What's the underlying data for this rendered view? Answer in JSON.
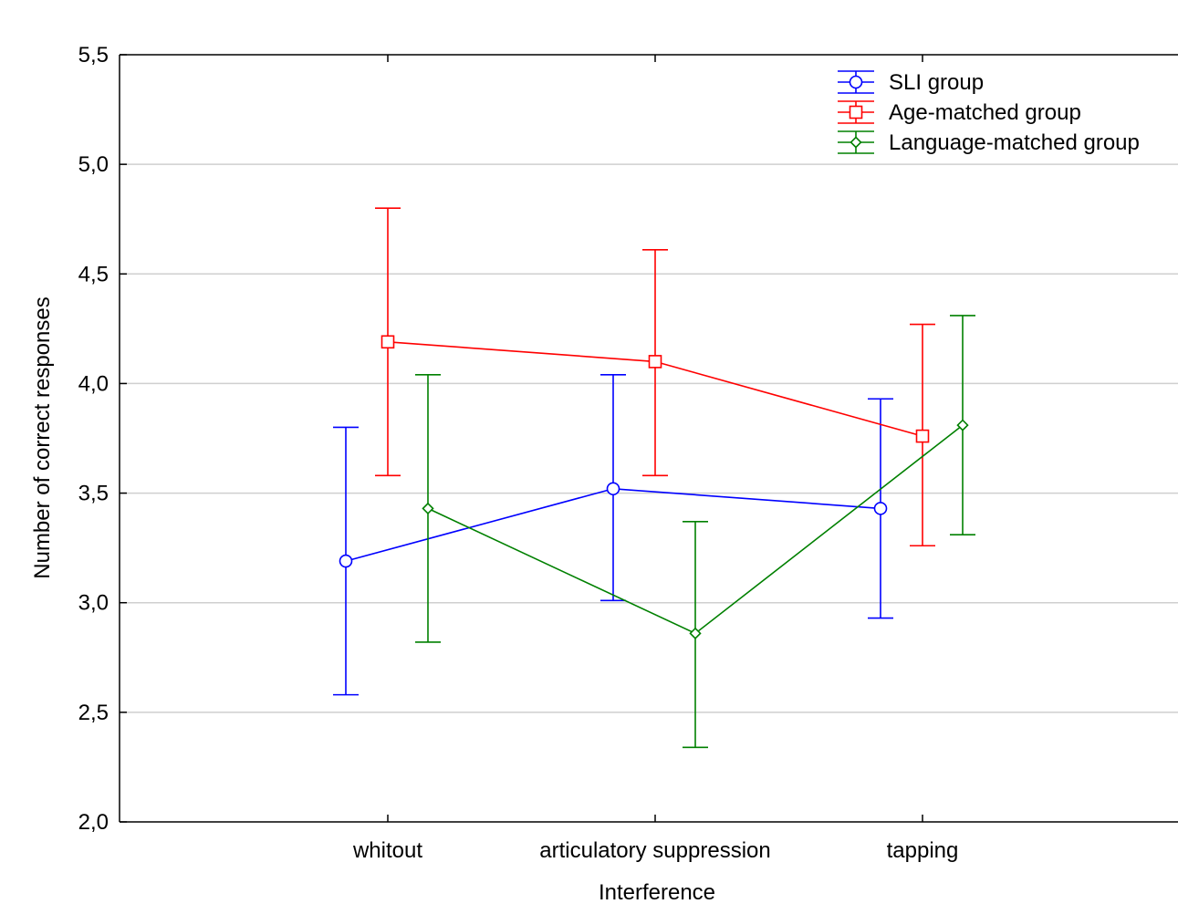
{
  "chart_data": {
    "type": "line",
    "xlabel": "Interference",
    "ylabel": "Number of correct responses",
    "categories": [
      "whitout",
      "articulatory suppression",
      "tapping"
    ],
    "ylim": [
      2.0,
      5.5
    ],
    "yticks": [
      "2,0",
      "2,5",
      "3,0",
      "3,5",
      "4,0",
      "4,5",
      "5,0",
      "5,5"
    ],
    "grid": "horizontal",
    "legend_position": "top-right",
    "series": [
      {
        "name": "SLI group",
        "color": "#0000ff",
        "marker": "circle",
        "values": [
          3.19,
          3.52,
          3.43
        ],
        "lower": [
          2.58,
          3.01,
          2.93
        ],
        "upper": [
          3.8,
          4.04,
          3.93
        ]
      },
      {
        "name": "Age-matched group",
        "color": "#ff0000",
        "marker": "square",
        "values": [
          4.19,
          4.1,
          3.76
        ],
        "lower": [
          3.58,
          3.58,
          3.26
        ],
        "upper": [
          4.8,
          4.61,
          4.27
        ]
      },
      {
        "name": "Language-matched group",
        "color": "#008000",
        "marker": "diamond",
        "values": [
          3.43,
          2.86,
          3.81
        ],
        "lower": [
          2.82,
          2.34,
          3.31
        ],
        "upper": [
          4.04,
          3.37,
          4.31
        ]
      }
    ]
  }
}
